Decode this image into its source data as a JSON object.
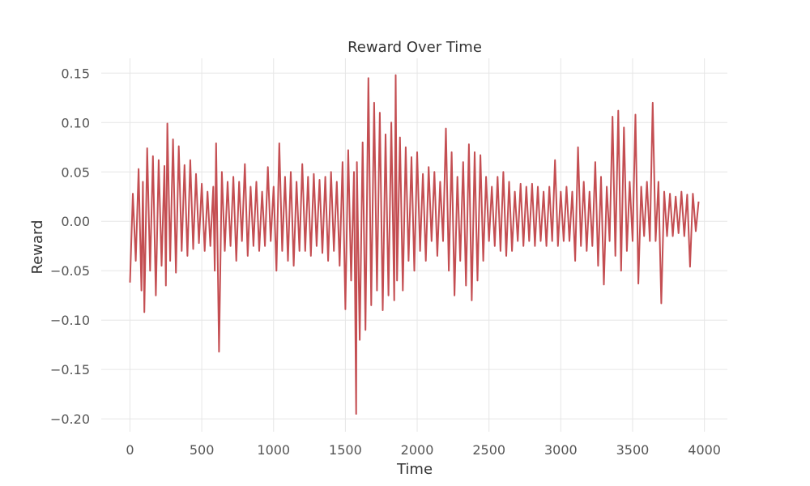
{
  "chart_data": {
    "type": "line",
    "title": "Reward Over Time",
    "xlabel": "Time",
    "ylabel": "Reward",
    "xlim": [
      -200,
      4160
    ],
    "ylim": [
      -0.213,
      0.165
    ],
    "xticks": [
      0,
      500,
      1000,
      1500,
      2000,
      2500,
      3000,
      3500,
      4000
    ],
    "yticks": [
      0.15,
      0.1,
      0.05,
      0.0,
      -0.05,
      -0.1,
      -0.15,
      -0.2
    ],
    "xtick_labels": [
      "0",
      "500",
      "1000",
      "1500",
      "2000",
      "2500",
      "3000",
      "3500",
      "4000"
    ],
    "ytick_labels": [
      "0.15",
      "0.10",
      "0.05",
      "0.00",
      "−0.05",
      "−0.10",
      "−0.15",
      "−0.20"
    ],
    "grid": true,
    "color": "#c44e52",
    "series": [
      {
        "name": "Reward",
        "x": [
          0,
          20,
          40,
          60,
          80,
          90,
          100,
          120,
          140,
          160,
          180,
          200,
          220,
          240,
          250,
          260,
          280,
          300,
          320,
          340,
          360,
          380,
          400,
          420,
          440,
          460,
          480,
          500,
          520,
          540,
          560,
          580,
          590,
          600,
          620,
          640,
          660,
          680,
          700,
          720,
          740,
          760,
          780,
          800,
          820,
          840,
          860,
          880,
          900,
          920,
          940,
          960,
          980,
          1000,
          1020,
          1040,
          1060,
          1080,
          1100,
          1120,
          1140,
          1160,
          1180,
          1200,
          1220,
          1240,
          1260,
          1280,
          1300,
          1320,
          1340,
          1360,
          1380,
          1400,
          1420,
          1440,
          1460,
          1480,
          1500,
          1520,
          1540,
          1560,
          1575,
          1580,
          1600,
          1620,
          1640,
          1660,
          1680,
          1700,
          1720,
          1740,
          1760,
          1780,
          1800,
          1820,
          1840,
          1850,
          1860,
          1880,
          1900,
          1920,
          1940,
          1960,
          1980,
          2000,
          2020,
          2040,
          2060,
          2080,
          2100,
          2120,
          2140,
          2160,
          2180,
          2200,
          2220,
          2240,
          2260,
          2280,
          2300,
          2320,
          2340,
          2360,
          2380,
          2400,
          2420,
          2440,
          2460,
          2480,
          2500,
          2520,
          2540,
          2560,
          2580,
          2600,
          2620,
          2640,
          2660,
          2680,
          2700,
          2720,
          2740,
          2760,
          2780,
          2800,
          2820,
          2840,
          2860,
          2880,
          2900,
          2920,
          2940,
          2960,
          2980,
          3000,
          3020,
          3040,
          3060,
          3080,
          3100,
          3120,
          3140,
          3160,
          3180,
          3200,
          3220,
          3240,
          3260,
          3280,
          3300,
          3320,
          3340,
          3360,
          3380,
          3400,
          3420,
          3440,
          3460,
          3480,
          3500,
          3520,
          3540,
          3560,
          3580,
          3600,
          3620,
          3640,
          3660,
          3680,
          3700,
          3720,
          3740,
          3760,
          3780,
          3800,
          3820,
          3840,
          3860,
          3880,
          3900,
          3920,
          3940,
          3960
        ],
        "y": [
          -0.062,
          0.028,
          -0.04,
          0.053,
          -0.07,
          0.04,
          -0.092,
          0.074,
          -0.05,
          0.066,
          -0.075,
          0.062,
          -0.045,
          0.056,
          -0.065,
          0.099,
          -0.04,
          0.083,
          -0.052,
          0.076,
          -0.03,
          0.057,
          -0.035,
          0.062,
          -0.028,
          0.048,
          -0.022,
          0.038,
          -0.03,
          0.03,
          -0.025,
          0.035,
          -0.05,
          0.079,
          -0.132,
          0.05,
          -0.03,
          0.04,
          -0.025,
          0.045,
          -0.04,
          0.04,
          -0.02,
          0.058,
          -0.035,
          0.035,
          -0.025,
          0.04,
          -0.03,
          0.03,
          -0.025,
          0.055,
          -0.02,
          0.035,
          -0.05,
          0.079,
          -0.03,
          0.045,
          -0.04,
          0.05,
          -0.045,
          0.04,
          -0.03,
          0.058,
          -0.03,
          0.045,
          -0.035,
          0.048,
          -0.025,
          0.042,
          -0.032,
          0.045,
          -0.04,
          0.05,
          -0.03,
          0.04,
          -0.045,
          0.06,
          -0.089,
          0.072,
          -0.06,
          0.05,
          -0.195,
          0.06,
          -0.12,
          0.08,
          -0.11,
          0.145,
          -0.085,
          0.12,
          -0.07,
          0.11,
          -0.09,
          0.088,
          -0.075,
          0.1,
          -0.08,
          0.148,
          -0.06,
          0.085,
          -0.07,
          0.075,
          -0.04,
          0.065,
          -0.05,
          0.07,
          -0.03,
          0.048,
          -0.04,
          0.055,
          -0.02,
          0.05,
          -0.035,
          0.04,
          -0.02,
          0.094,
          -0.05,
          0.07,
          -0.075,
          0.045,
          -0.04,
          0.06,
          -0.065,
          0.078,
          -0.08,
          0.07,
          -0.06,
          0.067,
          -0.04,
          0.045,
          -0.02,
          0.035,
          -0.025,
          0.045,
          -0.03,
          0.05,
          -0.035,
          0.04,
          -0.03,
          0.03,
          -0.02,
          0.038,
          -0.025,
          0.035,
          -0.02,
          0.038,
          -0.025,
          0.035,
          -0.02,
          0.03,
          -0.025,
          0.035,
          -0.02,
          0.062,
          -0.025,
          0.03,
          -0.02,
          0.035,
          -0.02,
          0.03,
          -0.04,
          0.075,
          -0.025,
          0.04,
          -0.03,
          0.03,
          -0.025,
          0.06,
          -0.045,
          0.045,
          -0.064,
          0.035,
          -0.02,
          0.106,
          -0.035,
          0.112,
          -0.05,
          0.095,
          -0.03,
          0.04,
          -0.02,
          0.108,
          -0.063,
          0.035,
          -0.015,
          0.04,
          -0.02,
          0.12,
          -0.02,
          0.04,
          -0.083,
          0.03,
          -0.015,
          0.028,
          -0.015,
          0.025,
          -0.012,
          0.03,
          -0.015,
          0.027,
          -0.046,
          0.028,
          -0.01,
          0.02
        ]
      }
    ]
  }
}
